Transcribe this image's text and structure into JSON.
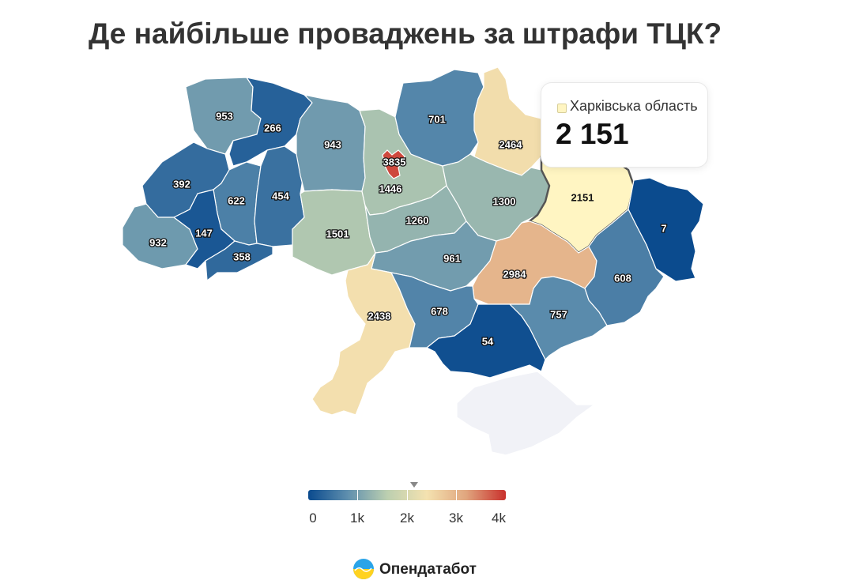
{
  "title": "Де найбільше проваджень за штрафи ТЦК?",
  "map_data": {
    "type": "choropleth",
    "regions": [
      {
        "id": "volyn",
        "label": "953",
        "value": 953
      },
      {
        "id": "rivne",
        "label": "266",
        "value": 266
      },
      {
        "id": "lviv",
        "label": "392",
        "value": 392
      },
      {
        "id": "ternopil",
        "label": "622",
        "value": 622
      },
      {
        "id": "khmelnytskyi",
        "label": "454",
        "value": 454
      },
      {
        "id": "zhytomyr",
        "label": "943",
        "value": 943
      },
      {
        "id": "zakarpattia",
        "label": "932",
        "value": 932
      },
      {
        "id": "ivano-frankivsk",
        "label": "147",
        "value": 147
      },
      {
        "id": "chernivtsi",
        "label": "358",
        "value": 358
      },
      {
        "id": "kyiv-oblast",
        "label": "1446",
        "value": 1446
      },
      {
        "id": "kyiv-city",
        "label": "3835",
        "value": 3835
      },
      {
        "id": "chernihiv",
        "label": "701",
        "value": 701
      },
      {
        "id": "sumy",
        "label": "2464",
        "value": 2464
      },
      {
        "id": "vinnytsia",
        "label": "1501",
        "value": 1501
      },
      {
        "id": "cherkasy",
        "label": "1260",
        "value": 1260
      },
      {
        "id": "poltava",
        "label": "1300",
        "value": 1300
      },
      {
        "id": "kharkiv",
        "label": "2151",
        "value": 2151
      },
      {
        "id": "luhansk",
        "label": "7",
        "value": 7
      },
      {
        "id": "kirovohrad",
        "label": "961",
        "value": 961
      },
      {
        "id": "dnipropetrovsk",
        "label": "2984",
        "value": 2984
      },
      {
        "id": "donetsk",
        "label": "608",
        "value": 608
      },
      {
        "id": "odesa",
        "label": "2438",
        "value": 2438
      },
      {
        "id": "mykolaiv",
        "label": "678",
        "value": 678
      },
      {
        "id": "kherson",
        "label": "54",
        "value": 54
      },
      {
        "id": "zaporizhzhia",
        "label": "757",
        "value": 757
      },
      {
        "id": "crimea",
        "label": "",
        "value": null
      }
    ],
    "highlighted_region": "kharkiv",
    "no_data_color": "#f1f2f7",
    "color_scale": [
      "#0a4a8e",
      "#5f8fae",
      "#bccfb0",
      "#f4e2b0",
      "#e0a57e",
      "#c9302c"
    ]
  },
  "tooltip": {
    "region_name": "Харківська область",
    "value_text": "2 151",
    "swatch_color": "#fff5c2"
  },
  "legend": {
    "ticks": [
      "0",
      "1k",
      "2k",
      "3k",
      "4k"
    ],
    "min": 0,
    "max": 4000,
    "marker_value": 2151
  },
  "brand": {
    "name": "Опендатабот"
  }
}
